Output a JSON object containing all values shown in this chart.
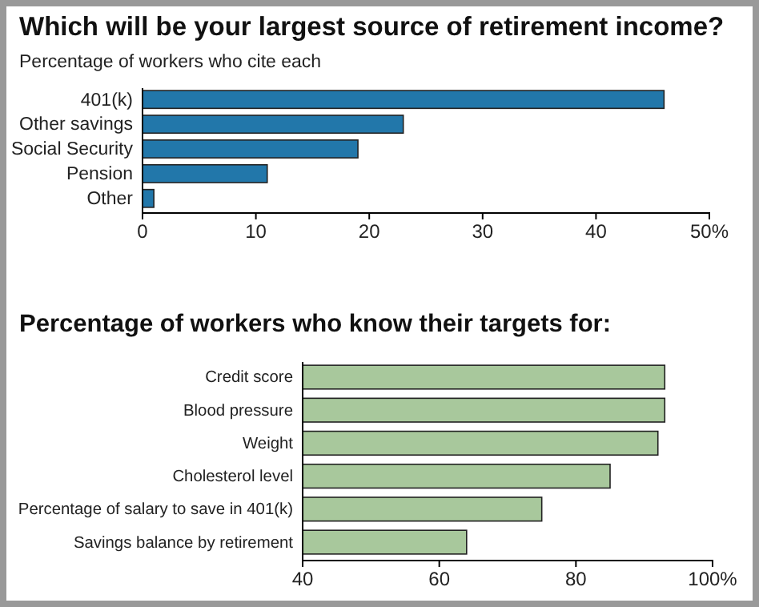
{
  "chart_data": [
    {
      "type": "bar",
      "orientation": "horizontal",
      "title": "Which will be your largest source of retirement income?",
      "subtitle": "Percentage of workers who cite each",
      "categories": [
        "401(k)",
        "Other savings",
        "Social Security",
        "Pension",
        "Other"
      ],
      "values": [
        46,
        23,
        19,
        11,
        1
      ],
      "color": "#2277aa",
      "xlim": [
        0,
        50
      ],
      "xticks": [
        0,
        10,
        20,
        30,
        40,
        {
          "value": 50,
          "label": "50%"
        }
      ]
    },
    {
      "type": "bar",
      "orientation": "horizontal",
      "title": "Percentage of workers who know their targets for:",
      "categories": [
        "Credit score",
        "Blood pressure",
        "Weight",
        "Cholesterol level",
        "Percentage of salary to save in 401(k)",
        "Savings balance by retirement"
      ],
      "values": [
        93,
        93,
        92,
        85,
        75,
        64
      ],
      "color": "#a8c89c",
      "xlim": [
        40,
        100
      ],
      "xticks": [
        40,
        60,
        80,
        {
          "value": 100,
          "label": "100%"
        }
      ]
    }
  ]
}
